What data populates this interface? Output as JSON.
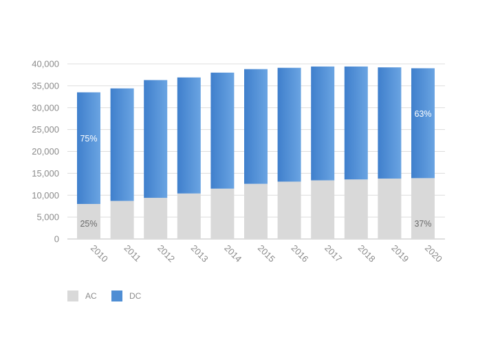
{
  "chart_data": {
    "type": "bar",
    "stacked": true,
    "categories": [
      "2010",
      "2011",
      "2012",
      "2013",
      "2014",
      "2015",
      "2016",
      "2017",
      "2018",
      "2019",
      "2020"
    ],
    "series": [
      {
        "name": "AC",
        "color": "#d9d9d9",
        "values": [
          8000,
          8700,
          9400,
          10400,
          11500,
          12600,
          13100,
          13400,
          13600,
          13800,
          13900
        ]
      },
      {
        "name": "DC",
        "color": "#4f8ed4",
        "values": [
          25500,
          25700,
          26900,
          26500,
          26500,
          26200,
          26000,
          26000,
          25800,
          25400,
          25100
        ]
      }
    ],
    "ylim": [
      0,
      40000
    ],
    "yticks": [
      0,
      5000,
      10000,
      15000,
      20000,
      25000,
      30000,
      35000,
      40000
    ],
    "ytick_labels": [
      "0",
      "5,000",
      "10,000",
      "15,000",
      "20,000",
      "25,000",
      "30,000",
      "35,000",
      "40,000"
    ],
    "annotations": [
      {
        "category": "2010",
        "series": "DC",
        "text": "75%",
        "color": "#ffffff"
      },
      {
        "category": "2010",
        "series": "AC",
        "text": "25%",
        "color": "#6b6b6b"
      },
      {
        "category": "2020",
        "series": "DC",
        "text": "63%",
        "color": "#ffffff"
      },
      {
        "category": "2020",
        "series": "AC",
        "text": "37%",
        "color": "#6b6b6b"
      }
    ],
    "grid": true,
    "legend_position": "bottom-left",
    "xlabel": "",
    "ylabel": "",
    "title": ""
  }
}
